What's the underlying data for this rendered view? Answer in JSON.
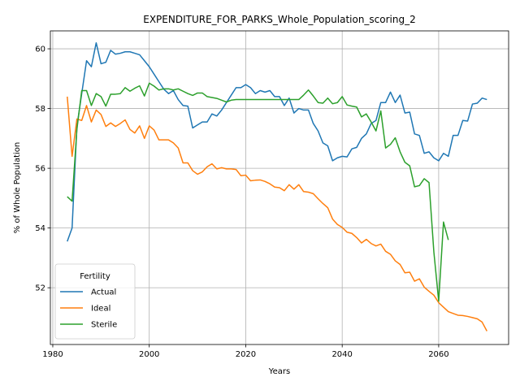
{
  "chart_data": {
    "type": "line",
    "title": "EXPENDITURE_FOR_PARKS_Whole_Population_scoring_2",
    "xlabel": "Years",
    "ylabel": "% of Whole Population",
    "xlim": [
      1979.5,
      2074.5
    ],
    "ylim": [
      50.1,
      60.6
    ],
    "x_ticks": [
      1980,
      2000,
      2020,
      2040,
      2060
    ],
    "y_ticks": [
      52,
      54,
      56,
      58,
      60
    ],
    "grid": true,
    "legend": {
      "title": "Fertility",
      "placement": "lower-left"
    },
    "series": [
      {
        "name": "Actual",
        "color": "#1f77b4",
        "points": [
          [
            1983,
            53.55
          ],
          [
            1984,
            54.0
          ],
          [
            1985,
            57.4
          ],
          [
            1986,
            58.5
          ],
          [
            1987,
            59.6
          ],
          [
            1988,
            59.4
          ],
          [
            1989,
            60.2
          ],
          [
            1990,
            59.5
          ],
          [
            1991,
            59.55
          ],
          [
            1992,
            59.95
          ],
          [
            1993,
            59.82
          ],
          [
            1994,
            59.85
          ],
          [
            1995,
            59.9
          ],
          [
            1996,
            59.9
          ],
          [
            1997,
            59.85
          ],
          [
            1998,
            59.8
          ],
          [
            1999,
            59.6
          ],
          [
            2000,
            59.4
          ],
          [
            2001,
            59.15
          ],
          [
            2002,
            58.9
          ],
          [
            2003,
            58.65
          ],
          [
            2004,
            58.5
          ],
          [
            2005,
            58.6
          ],
          [
            2006,
            58.3
          ],
          [
            2007,
            58.1
          ],
          [
            2008,
            58.08
          ],
          [
            2009,
            57.35
          ],
          [
            2010,
            57.45
          ],
          [
            2011,
            57.55
          ],
          [
            2012,
            57.55
          ],
          [
            2013,
            57.82
          ],
          [
            2014,
            57.75
          ],
          [
            2015,
            57.95
          ],
          [
            2016,
            58.2
          ],
          [
            2017,
            58.45
          ],
          [
            2018,
            58.7
          ],
          [
            2019,
            58.7
          ],
          [
            2020,
            58.8
          ],
          [
            2021,
            58.7
          ],
          [
            2022,
            58.5
          ],
          [
            2023,
            58.6
          ],
          [
            2024,
            58.55
          ],
          [
            2025,
            58.6
          ],
          [
            2026,
            58.4
          ],
          [
            2027,
            58.4
          ],
          [
            2028,
            58.1
          ],
          [
            2029,
            58.35
          ],
          [
            2030,
            57.85
          ],
          [
            2031,
            58.0
          ],
          [
            2032,
            57.95
          ],
          [
            2033,
            57.95
          ],
          [
            2034,
            57.5
          ],
          [
            2035,
            57.25
          ],
          [
            2036,
            56.85
          ],
          [
            2037,
            56.75
          ],
          [
            2038,
            56.25
          ],
          [
            2039,
            56.35
          ],
          [
            2040,
            56.4
          ],
          [
            2041,
            56.38
          ],
          [
            2042,
            56.65
          ],
          [
            2043,
            56.7
          ],
          [
            2044,
            57.0
          ],
          [
            2045,
            57.15
          ],
          [
            2046,
            57.5
          ],
          [
            2047,
            57.6
          ],
          [
            2048,
            58.2
          ],
          [
            2049,
            58.2
          ],
          [
            2050,
            58.55
          ],
          [
            2051,
            58.2
          ],
          [
            2052,
            58.45
          ],
          [
            2053,
            57.85
          ],
          [
            2054,
            57.88
          ],
          [
            2055,
            57.15
          ],
          [
            2056,
            57.1
          ],
          [
            2057,
            56.5
          ],
          [
            2058,
            56.55
          ],
          [
            2059,
            56.35
          ],
          [
            2060,
            56.25
          ],
          [
            2061,
            56.5
          ],
          [
            2062,
            56.4
          ],
          [
            2063,
            57.1
          ],
          [
            2064,
            57.1
          ],
          [
            2065,
            57.6
          ],
          [
            2066,
            57.58
          ],
          [
            2067,
            58.15
          ],
          [
            2068,
            58.18
          ],
          [
            2069,
            58.35
          ],
          [
            2070,
            58.3
          ]
        ]
      },
      {
        "name": "Ideal",
        "color": "#ff7f0e",
        "points": [
          [
            1983,
            58.4
          ],
          [
            1984,
            56.4
          ],
          [
            1985,
            57.65
          ],
          [
            1986,
            57.6
          ],
          [
            1987,
            58.1
          ],
          [
            1988,
            57.55
          ],
          [
            1989,
            57.95
          ],
          [
            1990,
            57.8
          ],
          [
            1991,
            57.4
          ],
          [
            1992,
            57.52
          ],
          [
            1993,
            57.4
          ],
          [
            1994,
            57.5
          ],
          [
            1995,
            57.62
          ],
          [
            1996,
            57.3
          ],
          [
            1997,
            57.18
          ],
          [
            1998,
            57.42
          ],
          [
            1999,
            57.0
          ],
          [
            2000,
            57.42
          ],
          [
            2001,
            57.28
          ],
          [
            2002,
            56.95
          ],
          [
            2003,
            56.95
          ],
          [
            2004,
            56.95
          ],
          [
            2005,
            56.85
          ],
          [
            2006,
            56.68
          ],
          [
            2007,
            56.18
          ],
          [
            2008,
            56.18
          ],
          [
            2009,
            55.92
          ],
          [
            2010,
            55.8
          ],
          [
            2011,
            55.88
          ],
          [
            2012,
            56.05
          ],
          [
            2013,
            56.15
          ],
          [
            2014,
            55.98
          ],
          [
            2015,
            56.02
          ],
          [
            2016,
            55.98
          ],
          [
            2017,
            55.98
          ],
          [
            2018,
            55.96
          ],
          [
            2019,
            55.75
          ],
          [
            2020,
            55.77
          ],
          [
            2021,
            55.58
          ],
          [
            2022,
            55.6
          ],
          [
            2023,
            55.61
          ],
          [
            2024,
            55.56
          ],
          [
            2025,
            55.48
          ],
          [
            2026,
            55.37
          ],
          [
            2027,
            55.35
          ],
          [
            2028,
            55.25
          ],
          [
            2029,
            55.45
          ],
          [
            2030,
            55.3
          ],
          [
            2031,
            55.45
          ],
          [
            2032,
            55.22
          ],
          [
            2033,
            55.2
          ],
          [
            2034,
            55.15
          ],
          [
            2035,
            54.98
          ],
          [
            2036,
            54.82
          ],
          [
            2037,
            54.68
          ],
          [
            2038,
            54.3
          ],
          [
            2039,
            54.12
          ],
          [
            2040,
            54.02
          ],
          [
            2041,
            53.86
          ],
          [
            2042,
            53.82
          ],
          [
            2043,
            53.68
          ],
          [
            2044,
            53.5
          ],
          [
            2045,
            53.62
          ],
          [
            2046,
            53.48
          ],
          [
            2047,
            53.4
          ],
          [
            2048,
            53.46
          ],
          [
            2049,
            53.22
          ],
          [
            2050,
            53.12
          ],
          [
            2051,
            52.9
          ],
          [
            2052,
            52.78
          ],
          [
            2053,
            52.5
          ],
          [
            2054,
            52.52
          ],
          [
            2055,
            52.22
          ],
          [
            2056,
            52.3
          ],
          [
            2057,
            52.02
          ],
          [
            2058,
            51.88
          ],
          [
            2059,
            51.75
          ],
          [
            2060,
            51.5
          ],
          [
            2061,
            51.35
          ],
          [
            2062,
            51.2
          ],
          [
            2063,
            51.14
          ],
          [
            2064,
            51.08
          ],
          [
            2065,
            51.07
          ],
          [
            2066,
            51.04
          ],
          [
            2067,
            51.0
          ],
          [
            2068,
            50.96
          ],
          [
            2069,
            50.85
          ],
          [
            2070,
            50.55
          ]
        ]
      },
      {
        "name": "Sterile",
        "color": "#2ca02c",
        "points": [
          [
            1983,
            55.05
          ],
          [
            1984,
            54.9
          ],
          [
            1985,
            57.3
          ],
          [
            1986,
            58.6
          ],
          [
            1987,
            58.6
          ],
          [
            1988,
            58.1
          ],
          [
            1989,
            58.5
          ],
          [
            1990,
            58.4
          ],
          [
            1991,
            58.08
          ],
          [
            1992,
            58.48
          ],
          [
            1993,
            58.48
          ],
          [
            1994,
            58.5
          ],
          [
            1995,
            58.7
          ],
          [
            1996,
            58.58
          ],
          [
            1997,
            58.68
          ],
          [
            1998,
            58.76
          ],
          [
            1999,
            58.42
          ],
          [
            2000,
            58.85
          ],
          [
            2001,
            58.75
          ],
          [
            2002,
            58.62
          ],
          [
            2003,
            58.66
          ],
          [
            2004,
            58.66
          ],
          [
            2005,
            58.62
          ],
          [
            2006,
            58.66
          ],
          [
            2007,
            58.58
          ],
          [
            2008,
            58.5
          ],
          [
            2009,
            58.44
          ],
          [
            2010,
            58.52
          ],
          [
            2011,
            58.52
          ],
          [
            2012,
            58.4
          ],
          [
            2013,
            58.37
          ],
          [
            2014,
            58.34
          ],
          [
            2015,
            58.28
          ],
          [
            2016,
            58.22
          ],
          [
            2017,
            58.28
          ],
          [
            2018,
            58.3
          ],
          [
            2019,
            58.3
          ],
          [
            2020,
            58.3
          ],
          [
            2021,
            58.3
          ],
          [
            2022,
            58.3
          ],
          [
            2023,
            58.3
          ],
          [
            2024,
            58.3
          ],
          [
            2025,
            58.3
          ],
          [
            2026,
            58.3
          ],
          [
            2027,
            58.3
          ],
          [
            2028,
            58.3
          ],
          [
            2029,
            58.3
          ],
          [
            2030,
            58.3
          ],
          [
            2031,
            58.3
          ],
          [
            2032,
            58.45
          ],
          [
            2033,
            58.62
          ],
          [
            2034,
            58.42
          ],
          [
            2035,
            58.2
          ],
          [
            2036,
            58.18
          ],
          [
            2037,
            58.35
          ],
          [
            2038,
            58.16
          ],
          [
            2039,
            58.2
          ],
          [
            2040,
            58.4
          ],
          [
            2041,
            58.12
          ],
          [
            2042,
            58.08
          ],
          [
            2043,
            58.05
          ],
          [
            2044,
            57.72
          ],
          [
            2045,
            57.82
          ],
          [
            2046,
            57.55
          ],
          [
            2047,
            57.25
          ],
          [
            2048,
            57.92
          ],
          [
            2049,
            56.68
          ],
          [
            2050,
            56.8
          ],
          [
            2051,
            57.02
          ],
          [
            2052,
            56.55
          ],
          [
            2053,
            56.2
          ],
          [
            2054,
            56.08
          ],
          [
            2055,
            55.38
          ],
          [
            2056,
            55.42
          ],
          [
            2057,
            55.65
          ],
          [
            2058,
            55.52
          ],
          [
            2059,
            53.2
          ],
          [
            2060,
            51.55
          ],
          [
            2061,
            54.2
          ],
          [
            2062,
            53.6
          ]
        ]
      }
    ]
  }
}
